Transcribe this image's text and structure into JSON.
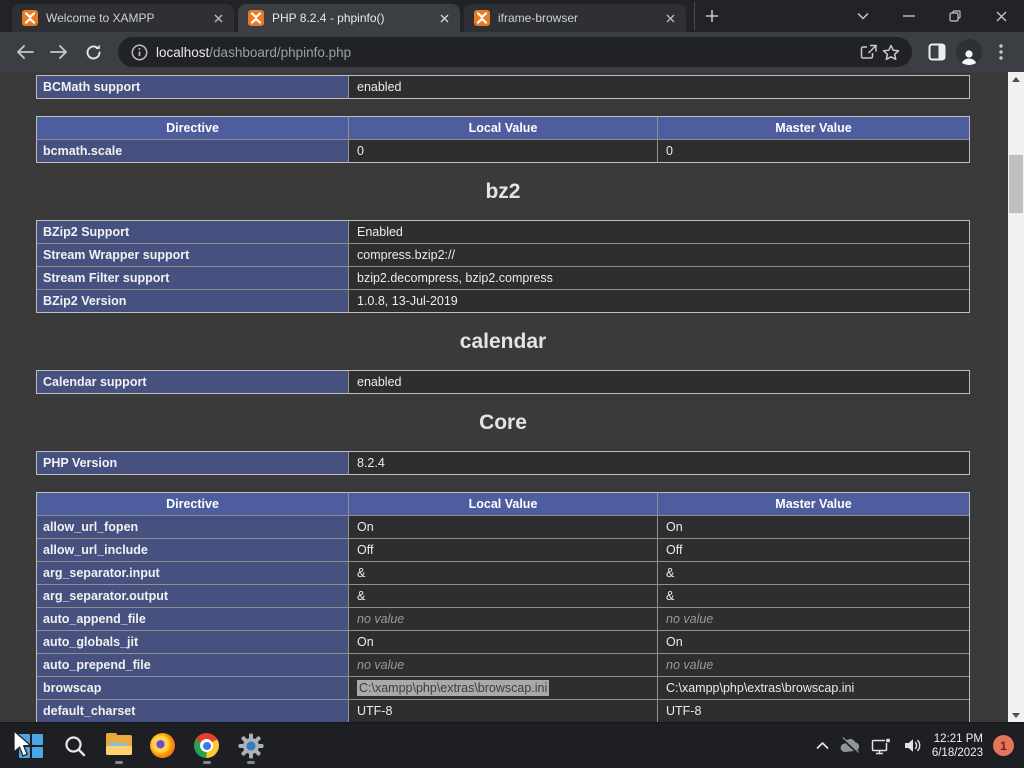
{
  "browser": {
    "tabs": [
      {
        "title": "Welcome to XAMPP",
        "active": false,
        "favicon": "xampp-icon"
      },
      {
        "title": "PHP 8.2.4 - phpinfo()",
        "active": true,
        "favicon": "xampp-icon"
      },
      {
        "title": "iframe-browser",
        "active": false,
        "favicon": "xampp-icon"
      }
    ],
    "window_controls": [
      "tab-search-icon",
      "minimize-icon",
      "restore-icon",
      "close-icon"
    ],
    "toolbar_icons": [
      "back-icon",
      "forward-icon",
      "reload-icon",
      "site-info-icon",
      "share-icon",
      "bookmark-star-icon",
      "side-panel-icon",
      "profile-avatar-icon",
      "menu-dots-icon"
    ],
    "address": {
      "host": "localhost",
      "path": "/dashboard/phpinfo.php"
    }
  },
  "page": {
    "sections": [
      {
        "type": "table",
        "cols": 2,
        "rows": [
          [
            "BCMath support",
            "enabled"
          ]
        ]
      },
      {
        "type": "table",
        "cols": 3,
        "header": [
          "Directive",
          "Local Value",
          "Master Value"
        ],
        "rows": [
          [
            "bcmath.scale",
            "0",
            "0"
          ]
        ]
      },
      {
        "type": "heading",
        "text": "bz2"
      },
      {
        "type": "table",
        "cols": 2,
        "rows": [
          [
            "BZip2 Support",
            "Enabled"
          ],
          [
            "Stream Wrapper support",
            "compress.bzip2://"
          ],
          [
            "Stream Filter support",
            "bzip2.decompress, bzip2.compress"
          ],
          [
            "BZip2 Version",
            "1.0.8, 13-Jul-2019"
          ]
        ]
      },
      {
        "type": "heading",
        "text": "calendar"
      },
      {
        "type": "table",
        "cols": 2,
        "rows": [
          [
            "Calendar support",
            "enabled"
          ]
        ]
      },
      {
        "type": "heading",
        "text": "Core"
      },
      {
        "type": "table",
        "cols": 2,
        "rows": [
          [
            "PHP Version",
            "8.2.4"
          ]
        ]
      },
      {
        "type": "table",
        "cols": 3,
        "header": [
          "Directive",
          "Local Value",
          "Master Value"
        ],
        "rows": [
          [
            "allow_url_fopen",
            "On",
            "On"
          ],
          [
            "allow_url_include",
            "Off",
            "Off"
          ],
          [
            "arg_separator.input",
            "&",
            "&"
          ],
          [
            "arg_separator.output",
            "&",
            "&"
          ],
          [
            "auto_append_file",
            {
              "text": "no value",
              "muted": true
            },
            {
              "text": "no value",
              "muted": true
            }
          ],
          [
            "auto_globals_jit",
            "On",
            "On"
          ],
          [
            "auto_prepend_file",
            {
              "text": "no value",
              "muted": true
            },
            {
              "text": "no value",
              "muted": true
            }
          ],
          [
            "browscap",
            {
              "text": "C:\\xampp\\php\\extras\\browscap.ini",
              "selected": true
            },
            "C:\\xampp\\php\\extras\\browscap.ini"
          ],
          [
            "default_charset",
            "UTF-8",
            "UTF-8"
          ]
        ]
      }
    ]
  },
  "taskbar": {
    "apps": [
      {
        "name": "start",
        "running": false
      },
      {
        "name": "search",
        "running": false
      },
      {
        "name": "file-explorer",
        "running": true
      },
      {
        "name": "firefox",
        "running": false
      },
      {
        "name": "chrome",
        "running": true
      },
      {
        "name": "settings",
        "running": true
      }
    ],
    "tray_icons": [
      "hidden-icons-chevron-icon",
      "onedrive-cloud-slash-icon",
      "ethernet-network-icon",
      "volume-icon"
    ],
    "clock": {
      "time": "12:21 PM",
      "date": "6/18/2023"
    },
    "notification_badge": "1"
  }
}
